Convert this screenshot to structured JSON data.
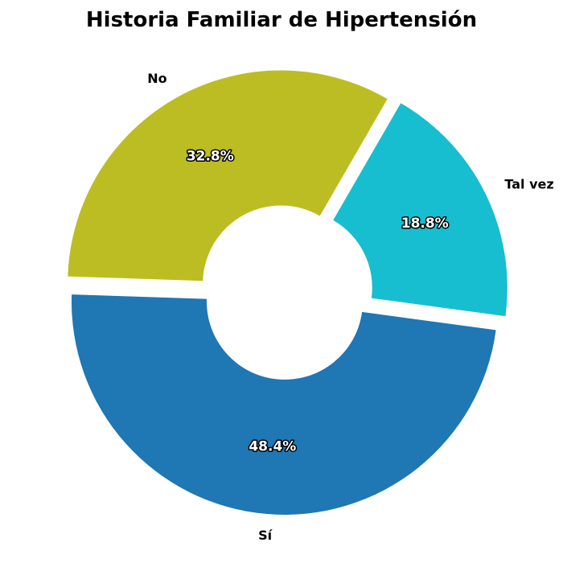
{
  "chart_data": {
    "type": "pie",
    "title": "Historia Familiar de Hipertensión",
    "categories": [
      "No",
      "Sí",
      "Tal vez"
    ],
    "values": [
      32.8,
      48.4,
      18.8
    ],
    "value_labels": [
      "32.8%",
      "48.4%",
      "18.8%"
    ],
    "colors": [
      "#bcbd22",
      "#1f77b4",
      "#17becf"
    ],
    "donut": true,
    "exploded": true,
    "legend": "none"
  }
}
